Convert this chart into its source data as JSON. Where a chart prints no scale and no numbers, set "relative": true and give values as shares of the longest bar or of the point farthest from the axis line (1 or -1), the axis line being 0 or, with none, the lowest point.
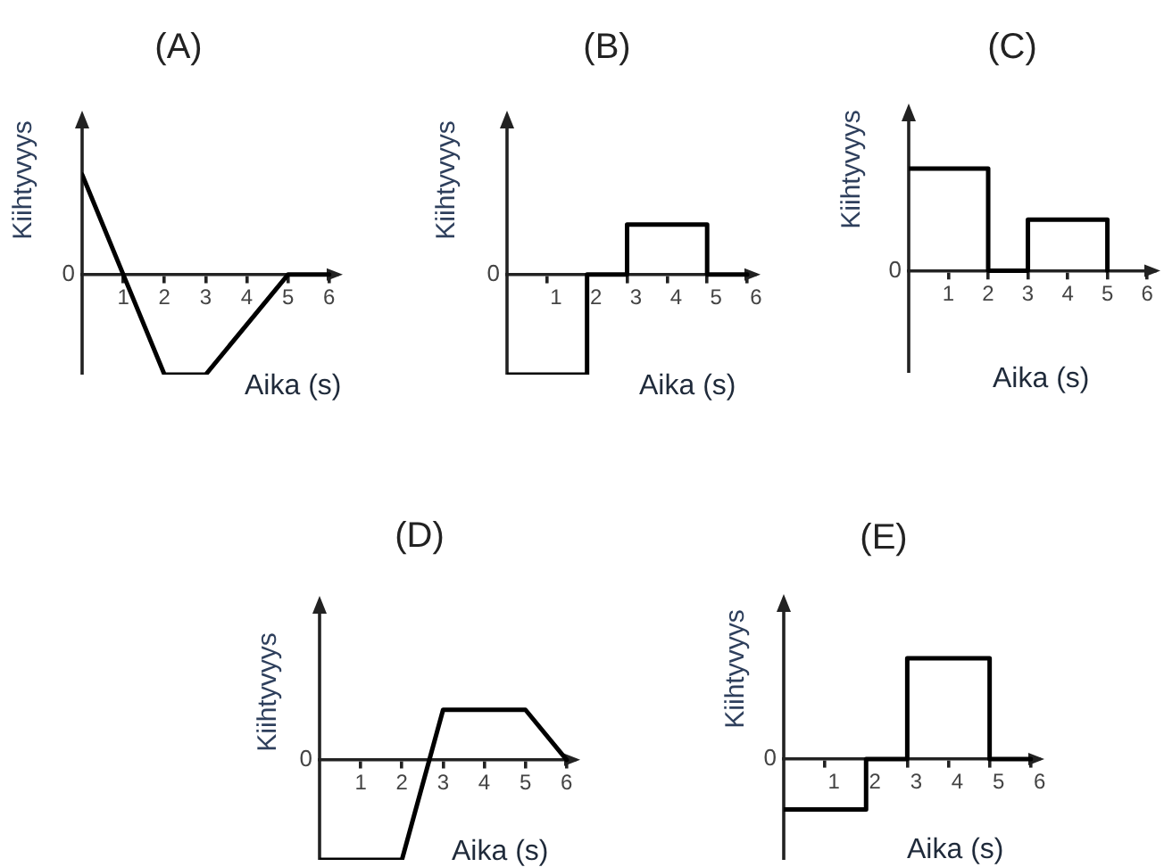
{
  "chart_data": [
    {
      "type": "line",
      "title": "(A)",
      "xlabel": "Aika (s)",
      "ylabel": "Kiihtyvyys",
      "x": [
        0,
        1,
        2,
        3,
        5,
        6
      ],
      "values": [
        1,
        0,
        -1,
        -1,
        0,
        0
      ],
      "color": "#000000",
      "relative": true,
      "xlim": [
        0,
        6.2
      ],
      "xticks": [
        1,
        2,
        3,
        4,
        5,
        6
      ],
      "annotations": [
        "0"
      ]
    },
    {
      "type": "step",
      "title": "(B)",
      "xlabel": "Aika (s)",
      "ylabel": "Kiihtyvyys",
      "x": [
        0,
        2,
        3,
        5,
        6
      ],
      "values": [
        -1,
        0,
        0.5,
        0,
        0
      ],
      "color": "#000000",
      "relative": true,
      "xlim": [
        0,
        6.2
      ],
      "xticks": [
        1,
        2,
        3,
        4,
        5,
        6
      ],
      "annotations": [
        "0"
      ]
    },
    {
      "type": "step",
      "title": "(C)",
      "xlabel": "Aika (s)",
      "ylabel": "Kiihtyvyys",
      "x": [
        0,
        2,
        3,
        5
      ],
      "values": [
        1,
        0,
        0.5,
        0
      ],
      "color": "#000000",
      "relative": true,
      "xlim": [
        0,
        6.2
      ],
      "xticks": [
        1,
        2,
        3,
        4,
        5,
        6
      ],
      "annotations": [
        "0"
      ]
    },
    {
      "type": "line",
      "title": "(D)",
      "xlabel": "Aika (s)",
      "ylabel": "Kiihtyvyys",
      "x": [
        0,
        2,
        3,
        5,
        6
      ],
      "values": [
        -1,
        -1,
        0.5,
        0.5,
        0
      ],
      "color": "#000000",
      "relative": true,
      "xlim": [
        0,
        6.2
      ],
      "xticks": [
        1,
        2,
        3,
        4,
        5,
        6
      ],
      "annotations": [
        "0"
      ]
    },
    {
      "type": "step",
      "title": "(E)",
      "xlabel": "Aika (s)",
      "ylabel": "Kiihtyvyys",
      "x": [
        0,
        2,
        3,
        5,
        6
      ],
      "values": [
        -0.5,
        0,
        1,
        0,
        0
      ],
      "color": "#000000",
      "relative": true,
      "xlim": [
        0,
        6.2
      ],
      "xticks": [
        1,
        2,
        3,
        4,
        5,
        6
      ],
      "annotations": [
        "0"
      ]
    }
  ]
}
